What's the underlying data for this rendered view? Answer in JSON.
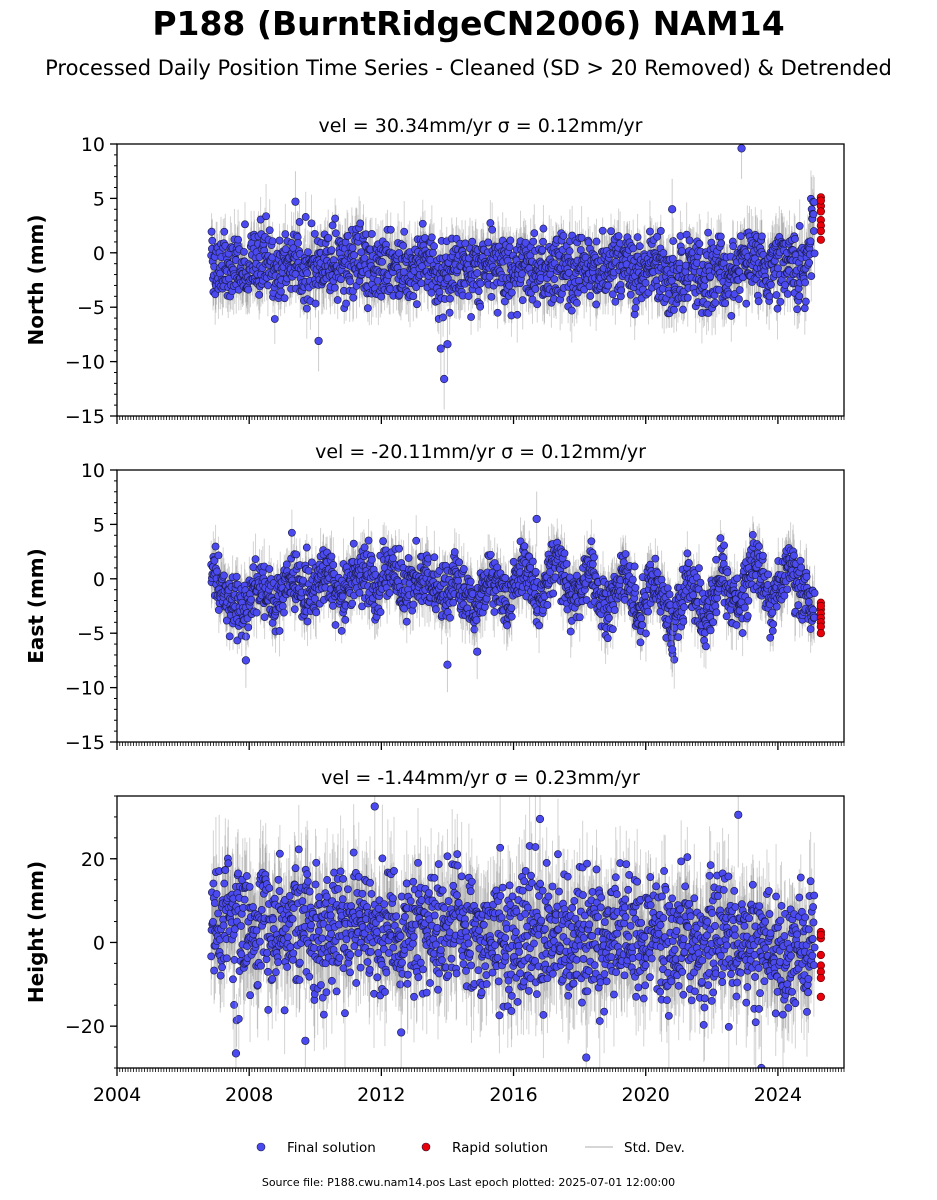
{
  "title": "P188 (BurntRidgeCN2006) NAM14",
  "subtitle": "Processed Daily Position Time Series - Cleaned (SD > 20 Removed) & Detrended",
  "footer": "Source file: P188.cwu.nam14.pos  Last epoch plotted: 2025-07-01 12:00:00",
  "colors": {
    "final": "#4a4af0",
    "rapid": "#e8000b",
    "stddev": "#c8c8c8"
  },
  "chart_data": [
    {
      "type": "scatter",
      "panel": "north",
      "title": "vel = 30.34mm/yr   σ = 0.12mm/yr",
      "xlabel": "",
      "ylabel": "North (mm)",
      "xlim": [
        2004,
        2026
      ],
      "ylim": [
        -15,
        10
      ],
      "y_ticks": [
        -15,
        -10,
        -5,
        0,
        5,
        10
      ],
      "x_ticks": [
        2004,
        2008,
        2012,
        2016,
        2020,
        2024
      ],
      "x_tick_labels_shown": false,
      "grid": false,
      "legend": "bottom-center",
      "series": [
        {
          "name": "Final solution",
          "x": [
            2006.9,
            2007.3,
            2007.8,
            2008.3,
            2008.8,
            2009.3,
            2009.8,
            2010.3,
            2010.8,
            2011.3,
            2011.8,
            2012.3,
            2012.8,
            2013.3,
            2013.8,
            2014.3,
            2014.8,
            2015.3,
            2015.8,
            2016.3,
            2016.8,
            2017.3,
            2017.8,
            2018.3,
            2018.8,
            2019.3,
            2019.8,
            2020.3,
            2020.8,
            2021.3,
            2021.8,
            2022.3,
            2022.8,
            2023.3,
            2023.8,
            2024.3,
            2024.8,
            2025.1
          ],
          "y": [
            -1.5,
            -0.8,
            -1.6,
            -0.5,
            -1.3,
            -0.6,
            -1.8,
            -0.9,
            -1.4,
            -0.4,
            -1.7,
            -1.0,
            -1.5,
            -0.7,
            -2.2,
            -1.2,
            -1.6,
            -0.8,
            -1.9,
            -1.0,
            -1.6,
            -1.1,
            -2.0,
            -1.3,
            -1.6,
            -0.9,
            -2.1,
            -1.2,
            -2.5,
            -1.5,
            -2.6,
            -1.4,
            -1.8,
            -0.7,
            -1.5,
            -1.3,
            -1.6,
            2.8
          ]
        },
        {
          "name": "Rapid solution",
          "x": [
            2025.3,
            2025.3,
            2025.3,
            2025.3,
            2025.3,
            2025.3,
            2025.3,
            2025.3
          ],
          "y": [
            5.1,
            4.3,
            3.8,
            3.0,
            2.5,
            2.0,
            1.2,
            4.8
          ]
        }
      ],
      "outliers": {
        "x": [
          2009.4,
          2010.1,
          2013.8,
          2013.9,
          2014.0,
          2020.8,
          2022.9
        ],
        "y": [
          4.7,
          -8.1,
          -8.8,
          -11.6,
          -8.4,
          4.0,
          9.6
        ]
      }
    },
    {
      "type": "scatter",
      "panel": "east",
      "title": "vel = -20.11mm/yr   σ = 0.12mm/yr",
      "xlabel": "",
      "ylabel": "East (mm)",
      "xlim": [
        2004,
        2026
      ],
      "ylim": [
        -15,
        10
      ],
      "y_ticks": [
        -15,
        -10,
        -5,
        0,
        5,
        10
      ],
      "x_ticks": [
        2004,
        2008,
        2012,
        2016,
        2020,
        2024
      ],
      "x_tick_labels_shown": false,
      "grid": false,
      "series": [
        {
          "name": "Final solution",
          "x": [
            2006.9,
            2007.3,
            2007.8,
            2008.3,
            2008.8,
            2009.3,
            2009.8,
            2010.3,
            2010.8,
            2011.3,
            2011.8,
            2012.3,
            2012.8,
            2013.3,
            2013.8,
            2014.3,
            2014.8,
            2015.3,
            2015.8,
            2016.3,
            2016.8,
            2017.3,
            2017.8,
            2018.3,
            2018.8,
            2019.3,
            2019.8,
            2020.3,
            2020.8,
            2021.3,
            2021.8,
            2022.3,
            2022.8,
            2023.3,
            2023.8,
            2024.3,
            2024.8,
            2025.1
          ],
          "y": [
            0.5,
            -1.5,
            -3.0,
            -0.5,
            -2.5,
            0.5,
            -1.5,
            1.0,
            -1.8,
            1.2,
            -1.5,
            1.5,
            -1.5,
            1.0,
            -2.2,
            0.2,
            -3.0,
            0.5,
            -2.5,
            1.5,
            -2.0,
            2.0,
            -2.5,
            1.2,
            -3.0,
            0.5,
            -3.2,
            0.5,
            -4.5,
            0.2,
            -4.0,
            1.0,
            -2.8,
            1.5,
            -2.5,
            1.2,
            -1.5,
            -2.5
          ]
        },
        {
          "name": "Rapid solution",
          "x": [
            2025.3,
            2025.3,
            2025.3,
            2025.3,
            2025.3,
            2025.3,
            2025.3,
            2025.3
          ],
          "y": [
            -2.2,
            -2.8,
            -3.2,
            -3.6,
            -4.0,
            -4.4,
            -5.0,
            -2.5
          ]
        }
      ],
      "outliers": {
        "x": [
          2007.9,
          2014.0,
          2014.9,
          2016.7,
          2020.8
        ],
        "y": [
          -7.5,
          -7.9,
          -6.7,
          5.5,
          -6.5
        ]
      }
    },
    {
      "type": "scatter",
      "panel": "height",
      "title": "vel = -1.44mm/yr   σ = 0.23mm/yr",
      "xlabel": "",
      "ylabel": "Height (mm)",
      "xlim": [
        2004,
        2026
      ],
      "ylim": [
        -30,
        35
      ],
      "y_ticks": [
        -20,
        0,
        20
      ],
      "x_ticks": [
        2004,
        2008,
        2012,
        2016,
        2020,
        2024
      ],
      "x_tick_labels_shown": true,
      "grid": false,
      "series": [
        {
          "name": "Final solution",
          "x": [
            2006.9,
            2007.3,
            2007.8,
            2008.3,
            2008.8,
            2009.3,
            2009.8,
            2010.3,
            2010.8,
            2011.3,
            2011.8,
            2012.3,
            2012.8,
            2013.3,
            2013.8,
            2014.3,
            2014.8,
            2015.3,
            2015.8,
            2016.3,
            2016.8,
            2017.3,
            2017.8,
            2018.3,
            2018.8,
            2019.3,
            2019.8,
            2020.3,
            2020.8,
            2021.3,
            2021.8,
            2022.3,
            2022.8,
            2023.3,
            2023.8,
            2024.3,
            2024.8,
            2025.1
          ],
          "y": [
            4.0,
            6.0,
            3.0,
            5.0,
            2.0,
            6.0,
            4.0,
            3.0,
            2.5,
            5.0,
            2.0,
            4.0,
            1.0,
            5.5,
            3.0,
            4.0,
            1.5,
            3.0,
            0.5,
            2.5,
            0.5,
            3.0,
            -0.5,
            2.0,
            -1.0,
            2.5,
            -1.0,
            2.0,
            -1.5,
            2.0,
            -0.5,
            2.5,
            0.0,
            -1.5,
            -3.0,
            -2.0,
            -1.0,
            -0.5
          ]
        },
        {
          "name": "Rapid solution",
          "x": [
            2025.3,
            2025.3,
            2025.3,
            2025.3,
            2025.3,
            2025.3,
            2025.3,
            2025.3
          ],
          "y": [
            2.5,
            1.0,
            -3.0,
            -5.5,
            -7.0,
            -8.5,
            -13.0,
            1.8
          ]
        }
      ],
      "outliers": {
        "x": [
          2007.6,
          2009.7,
          2011.8,
          2012.6,
          2016.8,
          2018.2,
          2022.8,
          2023.5
        ],
        "y": [
          -26.5,
          -23.5,
          32.5,
          -21.5,
          29.5,
          -27.5,
          30.5,
          -30.0
        ]
      }
    }
  ],
  "legend": [
    {
      "kind": "marker",
      "color": "#4a4af0",
      "label": "Final solution"
    },
    {
      "kind": "marker",
      "color": "#e8000b",
      "label": "Rapid solution"
    },
    {
      "kind": "line",
      "color": "#c8c8c8",
      "label": "Std. Dev."
    }
  ]
}
